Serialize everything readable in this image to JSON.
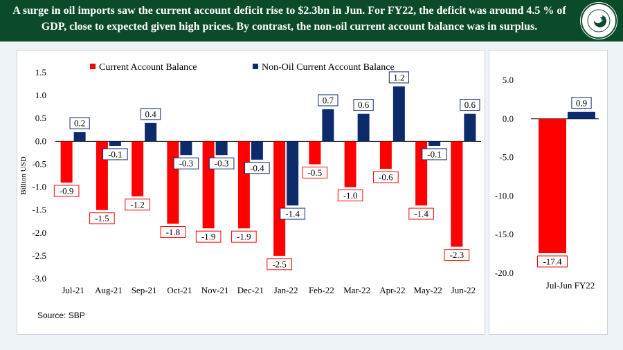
{
  "header": {
    "title": "A surge in oil imports saw the current account deficit rise to $2.3bn in Jun. For FY22, the deficit was around 4.5 % of GDP, close to expected given high prices. By contrast, the non-oil current account balance was in surplus."
  },
  "logo": {
    "icon": "state-bank-of-pakistan-logo",
    "text": "STATE BANK OF PAKISTAN"
  },
  "source": "Source: SBP",
  "colors": {
    "current_account": "#ff0000",
    "non_oil": "#0d2b6b",
    "header_bg": "#0b4b2a",
    "page_bg": "#eef3f8"
  },
  "chart_data": [
    {
      "type": "bar",
      "title": "",
      "xlabel": "",
      "ylabel": "Billion USD",
      "ylim": [
        -3.0,
        1.5
      ],
      "yticks": [
        1.5,
        1.0,
        0.5,
        0.0,
        -0.5,
        -1.0,
        -1.5,
        -2.0,
        -2.5,
        -3.0
      ],
      "ytick_labels": [
        "1.5",
        "1.0",
        "0.5",
        "0.0",
        "-0.5",
        "-1.0",
        "-1.5",
        "-2.0",
        "-2.5",
        "-3.0"
      ],
      "categories": [
        "Jul-21",
        "Aug-21",
        "Sep-21",
        "Oct-21",
        "Nov-21",
        "Dec-21",
        "Jan-22",
        "Feb-22",
        "Mar-22",
        "Apr-22",
        "May-22",
        "Jun-22"
      ],
      "legend_position": "top",
      "series": [
        {
          "name": "Current Account Balance",
          "color": "#ff0000",
          "values": [
            -0.9,
            -1.5,
            -1.2,
            -1.8,
            -1.9,
            -1.9,
            -2.5,
            -0.5,
            -1.0,
            -0.6,
            -1.4,
            -2.3
          ],
          "labels": [
            "-0.9",
            "-1.5",
            "-1.2",
            "-1.8",
            "-1.9",
            "-1.9",
            "-2.5",
            "-0.5",
            "-1.0",
            "-0.6",
            "-1.4",
            "-2.3"
          ]
        },
        {
          "name": "Non-Oil Current Account Balance",
          "color": "#0d2b6b",
          "values": [
            0.2,
            -0.1,
            0.4,
            -0.3,
            -0.3,
            -0.4,
            -1.4,
            0.7,
            0.6,
            1.2,
            -0.1,
            0.6
          ],
          "labels": [
            "0.2",
            "-0.1",
            "0.4",
            "-0.3",
            "-0.3",
            "-0.4",
            "-1.4",
            "0.7",
            "0.6",
            "1.2",
            "-0.1",
            "0.6"
          ]
        }
      ]
    },
    {
      "type": "bar",
      "title": "",
      "ylim": [
        -20.0,
        5.0
      ],
      "yticks": [
        5.0,
        0.0,
        -5.0,
        -10.0,
        -15.0,
        -20.0
      ],
      "ytick_labels": [
        "5.0",
        "0.0",
        "-5.0",
        "-10.0",
        "-15.0",
        "-20.0"
      ],
      "categories": [
        "Jul-Jun FY22"
      ],
      "series": [
        {
          "name": "Current Account Balance",
          "color": "#ff0000",
          "values": [
            -17.4
          ],
          "labels": [
            "-17.4"
          ]
        },
        {
          "name": "Non-Oil Current Account Balance",
          "color": "#0d2b6b",
          "values": [
            0.9
          ],
          "labels": [
            "0.9"
          ]
        }
      ]
    }
  ]
}
